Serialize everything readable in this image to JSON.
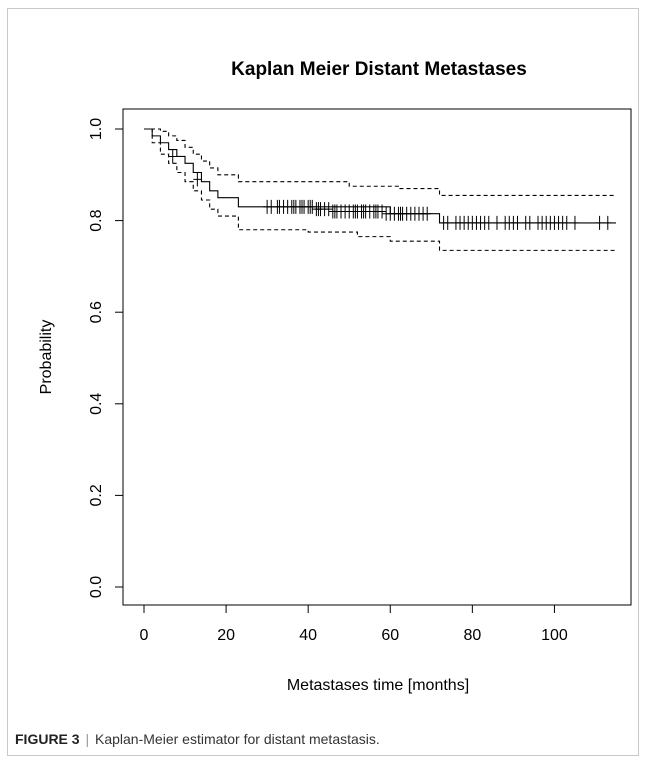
{
  "chart_data": {
    "type": "line",
    "title": "Kaplan Meier Distant Metastases",
    "xlabel": "Metastases time [months]",
    "ylabel": "Probability",
    "xlim": [
      0,
      115
    ],
    "ylim": [
      0.0,
      1.0
    ],
    "xticks": [
      "0",
      "20",
      "40",
      "60",
      "80",
      "100"
    ],
    "yticks": [
      "0.0",
      "0.2",
      "0.4",
      "0.6",
      "0.8",
      "1.0"
    ],
    "grid": false,
    "legend": "none",
    "series": [
      {
        "role": "estimate",
        "style": "solid",
        "x": [
          0,
          2,
          4,
          6,
          8,
          10,
          12,
          14,
          16,
          18,
          23,
          60,
          72,
          115
        ],
        "y": [
          1.0,
          0.985,
          0.97,
          0.955,
          0.94,
          0.925,
          0.905,
          0.885,
          0.865,
          0.85,
          0.83,
          0.815,
          0.795,
          0.795
        ]
      },
      {
        "role": "upper",
        "style": "dashed",
        "x": [
          0,
          2,
          4,
          6,
          8,
          10,
          12,
          14,
          16,
          18,
          23,
          50,
          62,
          72,
          115
        ],
        "y": [
          1.0,
          1.0,
          0.995,
          0.985,
          0.975,
          0.96,
          0.945,
          0.93,
          0.915,
          0.9,
          0.885,
          0.875,
          0.87,
          0.855,
          0.855
        ]
      },
      {
        "role": "lower",
        "style": "dashed",
        "x": [
          0,
          2,
          4,
          6,
          8,
          10,
          12,
          14,
          16,
          18,
          23,
          40,
          52,
          60,
          72,
          115
        ],
        "y": [
          1.0,
          0.97,
          0.945,
          0.925,
          0.905,
          0.885,
          0.865,
          0.845,
          0.825,
          0.81,
          0.78,
          0.775,
          0.765,
          0.755,
          0.735,
          0.735
        ]
      }
    ],
    "censored": {
      "x": [
        7,
        13,
        30,
        31,
        32.5,
        33,
        34,
        35,
        36,
        36.5,
        37,
        38,
        38.5,
        39,
        40,
        40.5,
        41,
        42,
        42.5,
        43,
        44,
        45,
        46,
        46.5,
        47,
        48,
        49,
        50,
        51,
        51.5,
        52,
        53,
        53.5,
        54,
        55,
        56,
        56.5,
        57,
        58,
        59,
        60,
        61,
        62,
        62.5,
        63,
        64,
        65,
        66,
        67,
        68,
        69,
        73,
        74,
        76,
        77,
        78,
        79,
        80,
        81,
        82,
        83,
        84,
        86,
        88,
        89,
        90,
        91,
        93,
        94,
        96,
        97,
        98,
        99,
        100,
        101,
        102,
        103,
        105,
        111,
        113
      ],
      "y": [
        0.94,
        0.89,
        0.83,
        0.83,
        0.83,
        0.83,
        0.83,
        0.83,
        0.83,
        0.83,
        0.83,
        0.83,
        0.83,
        0.83,
        0.83,
        0.83,
        0.83,
        0.825,
        0.825,
        0.825,
        0.825,
        0.825,
        0.82,
        0.82,
        0.82,
        0.82,
        0.82,
        0.82,
        0.82,
        0.82,
        0.82,
        0.82,
        0.82,
        0.82,
        0.82,
        0.82,
        0.82,
        0.82,
        0.82,
        0.815,
        0.815,
        0.815,
        0.815,
        0.815,
        0.815,
        0.815,
        0.815,
        0.815,
        0.815,
        0.815,
        0.815,
        0.795,
        0.795,
        0.795,
        0.795,
        0.795,
        0.795,
        0.795,
        0.795,
        0.795,
        0.795,
        0.795,
        0.795,
        0.795,
        0.795,
        0.795,
        0.795,
        0.795,
        0.795,
        0.795,
        0.795,
        0.795,
        0.795,
        0.795,
        0.795,
        0.795,
        0.795,
        0.795,
        0.795,
        0.795
      ]
    }
  },
  "caption": {
    "label": "FIGURE 3",
    "separator": "|",
    "text": "Kaplan-Meier estimator for distant metastasis."
  }
}
